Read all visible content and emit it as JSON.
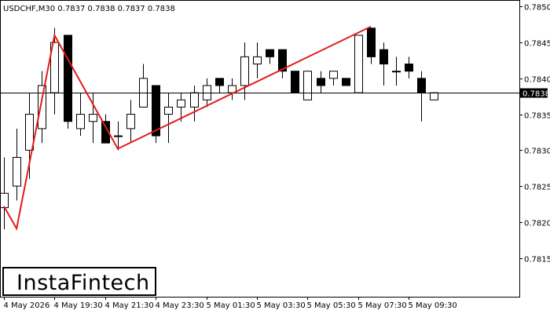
{
  "header": {
    "title": "USDCHF,M30  0.7837 0.7838 0.7837 0.7838"
  },
  "logo": {
    "text": "InstaFintech"
  },
  "colors": {
    "pattern_line": "#e31b1b",
    "bull_fill": "#ffffff",
    "bear_fill": "#000000",
    "axis": "#000000"
  },
  "chart_data": {
    "type": "candlestick",
    "symbol": "USDCHF",
    "timeframe": "M30",
    "y_ticks": [
      "0.7850",
      "0.7845",
      "0.7840",
      "0.7835",
      "0.7830",
      "0.7825",
      "0.7820",
      "0.7815"
    ],
    "x_ticks": [
      "4 May 2026",
      "4 May 19:30",
      "4 May 21:30",
      "4 May 23:30",
      "5 May 01:30",
      "5 May 03:30",
      "5 May 05:30",
      "5 May 07:30",
      "5 May 09:30"
    ],
    "ylim": [
      0.78096,
      0.78508
    ],
    "current_price": {
      "value": 0.7838,
      "label": "0.7838"
    },
    "candles": [
      {
        "t": 0,
        "o": 0.7822,
        "h": 0.7829,
        "l": 0.7819,
        "c": 0.7824
      },
      {
        "t": 1,
        "o": 0.7825,
        "h": 0.7833,
        "l": 0.7823,
        "c": 0.7829
      },
      {
        "t": 2,
        "o": 0.783,
        "h": 0.7838,
        "l": 0.7826,
        "c": 0.7835
      },
      {
        "t": 3,
        "o": 0.7833,
        "h": 0.7841,
        "l": 0.7831,
        "c": 0.7839
      },
      {
        "t": 4,
        "o": 0.7838,
        "h": 0.7847,
        "l": 0.7835,
        "c": 0.7845
      },
      {
        "t": 5,
        "o": 0.7846,
        "h": 0.7846,
        "l": 0.7833,
        "c": 0.7834
      },
      {
        "t": 6,
        "o": 0.7833,
        "h": 0.7838,
        "l": 0.7832,
        "c": 0.7835
      },
      {
        "t": 7,
        "o": 0.7834,
        "h": 0.7838,
        "l": 0.7831,
        "c": 0.7835
      },
      {
        "t": 8,
        "o": 0.7834,
        "h": 0.7835,
        "l": 0.7831,
        "c": 0.7831
      },
      {
        "t": 9,
        "o": 0.7832,
        "h": 0.7834,
        "l": 0.783,
        "c": 0.7832
      },
      {
        "t": 10,
        "o": 0.7833,
        "h": 0.7837,
        "l": 0.7831,
        "c": 0.7835
      },
      {
        "t": 11,
        "o": 0.7836,
        "h": 0.7842,
        "l": 0.7836,
        "c": 0.784
      },
      {
        "t": 12,
        "o": 0.7839,
        "h": 0.7839,
        "l": 0.7831,
        "c": 0.7832
      },
      {
        "t": 13,
        "o": 0.7835,
        "h": 0.7838,
        "l": 0.7831,
        "c": 0.7836
      },
      {
        "t": 14,
        "o": 0.7836,
        "h": 0.7838,
        "l": 0.7834,
        "c": 0.7837
      },
      {
        "t": 15,
        "o": 0.7836,
        "h": 0.7839,
        "l": 0.7834,
        "c": 0.7838
      },
      {
        "t": 16,
        "o": 0.7837,
        "h": 0.784,
        "l": 0.7836,
        "c": 0.7839
      },
      {
        "t": 17,
        "o": 0.784,
        "h": 0.784,
        "l": 0.7838,
        "c": 0.7839
      },
      {
        "t": 18,
        "o": 0.7838,
        "h": 0.784,
        "l": 0.7837,
        "c": 0.7839
      },
      {
        "t": 19,
        "o": 0.7839,
        "h": 0.7845,
        "l": 0.7837,
        "c": 0.7843
      },
      {
        "t": 20,
        "o": 0.7842,
        "h": 0.7845,
        "l": 0.784,
        "c": 0.7843
      },
      {
        "t": 21,
        "o": 0.7844,
        "h": 0.7844,
        "l": 0.7842,
        "c": 0.7843
      },
      {
        "t": 22,
        "o": 0.7844,
        "h": 0.7844,
        "l": 0.784,
        "c": 0.7841
      },
      {
        "t": 23,
        "o": 0.7841,
        "h": 0.7841,
        "l": 0.7838,
        "c": 0.7838
      },
      {
        "t": 24,
        "o": 0.7837,
        "h": 0.7841,
        "l": 0.7837,
        "c": 0.7841
      },
      {
        "t": 25,
        "o": 0.784,
        "h": 0.7841,
        "l": 0.7838,
        "c": 0.7839
      },
      {
        "t": 26,
        "o": 0.784,
        "h": 0.7841,
        "l": 0.7839,
        "c": 0.7841
      },
      {
        "t": 27,
        "o": 0.784,
        "h": 0.784,
        "l": 0.7839,
        "c": 0.7839
      },
      {
        "t": 28,
        "o": 0.7838,
        "h": 0.7846,
        "l": 0.7838,
        "c": 0.7846
      },
      {
        "t": 29,
        "o": 0.7847,
        "h": 0.7847,
        "l": 0.7842,
        "c": 0.7843
      },
      {
        "t": 30,
        "o": 0.7844,
        "h": 0.7845,
        "l": 0.7839,
        "c": 0.7842
      },
      {
        "t": 31,
        "o": 0.7841,
        "h": 0.7843,
        "l": 0.7839,
        "c": 0.7841
      },
      {
        "t": 32,
        "o": 0.7842,
        "h": 0.7843,
        "l": 0.784,
        "c": 0.7841
      },
      {
        "t": 33,
        "o": 0.784,
        "h": 0.7841,
        "l": 0.7834,
        "c": 0.7838
      },
      {
        "t": 34,
        "o": 0.7837,
        "h": 0.7838,
        "l": 0.7837,
        "c": 0.7838
      }
    ],
    "pattern_line": [
      {
        "t": 0,
        "price": 0.78222
      },
      {
        "t": 1,
        "price": 0.78191
      },
      {
        "t": 4,
        "price": 0.7846
      },
      {
        "t": 9,
        "price": 0.78302
      },
      {
        "t": 29,
        "price": 0.78472
      }
    ]
  }
}
